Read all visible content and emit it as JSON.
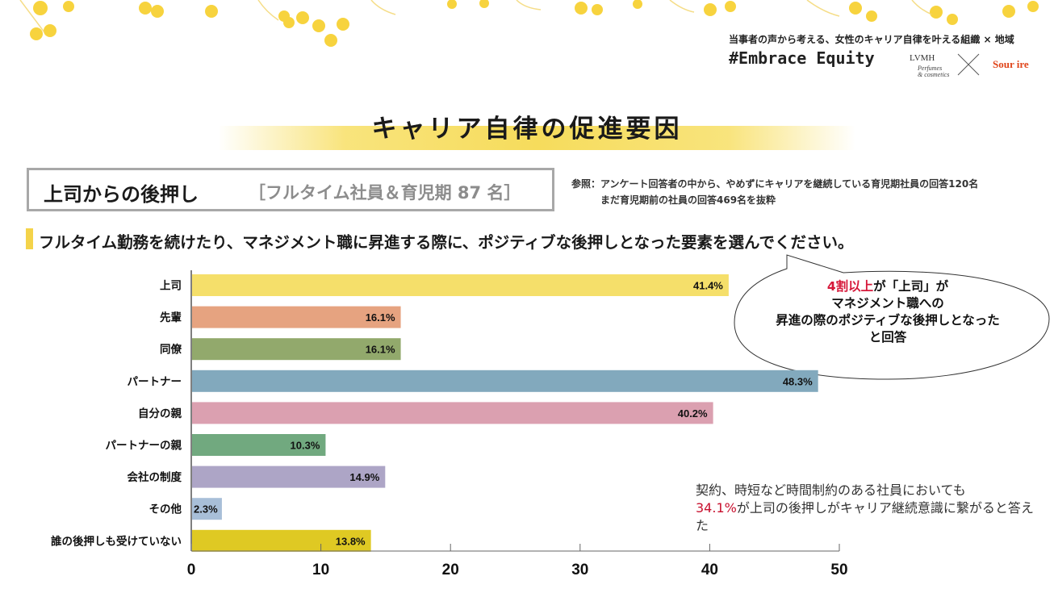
{
  "header": {
    "subtitle": "当事者の声から考える、女性のキャリア自律を叶える組織 × 地域",
    "hashtag": "#Embrace Equity",
    "logo_lvmh": "LVMH",
    "logo_lvmh_sub1": "Perfumes",
    "logo_lvmh_sub2": "& cosmetics",
    "logo_sourire": "Sour ire"
  },
  "page_title": "キャリア自律の促進要因",
  "section": {
    "title": "上司からの後押し",
    "subtitle": "［フルタイム社員＆育児期 87 名］"
  },
  "reference": {
    "line1": "参照：アンケート回答者の中から、やめずにキャリアを継続している育児期社員の回答120名",
    "line2": "まだ育児期前の社員の回答469名を抜粋"
  },
  "question": "フルタイム勤務を続けたり、マネジメント職に昇進する際に、ポジティブな後押しとなった要素を選んでください。",
  "callout": {
    "highlight": "4割以上",
    "line1_rest": "が「上司」が",
    "line2": "マネジメント職への",
    "line3": "昇進の際のポジティブな後押しとなった",
    "line4": "と回答"
  },
  "note": {
    "line1": "契約、時短など時間制約のある社員においても",
    "highlight": "34.1%",
    "line2_rest": "が上司の後押しがキャリア継続意識に繋がると答えた"
  },
  "colors": {
    "accent_red": "#d6183a",
    "title_band": "#f6dc5c"
  },
  "chart_data": {
    "type": "bar",
    "orientation": "horizontal",
    "categories": [
      "上司",
      "先輩",
      "同僚",
      "パートナー",
      "自分の親",
      "パートナーの親",
      "会社の制度",
      "その他",
      "誰の後押しも受けていない"
    ],
    "values": [
      41.4,
      16.1,
      16.1,
      48.3,
      40.2,
      10.3,
      14.9,
      2.3,
      13.8
    ],
    "data_labels": [
      "41.4%",
      "16.1%",
      "16.1%",
      "48.3%",
      "40.2%",
      "10.3%",
      "14.9%",
      "2.3%",
      "13.8%"
    ],
    "bar_colors": [
      "#f5df6a",
      "#e6a380",
      "#92a96c",
      "#82a9bd",
      "#dba0b0",
      "#71a97f",
      "#ada5c6",
      "#a8bfd8",
      "#dfc923"
    ],
    "xlim": [
      0,
      50
    ],
    "xticks": [
      0,
      10,
      20,
      30,
      40,
      50
    ],
    "xtick_labels": [
      "0",
      "10",
      "20",
      "30",
      "40",
      "50"
    ],
    "title": "",
    "xlabel": "",
    "ylabel": "",
    "grid": false,
    "legend": "none"
  }
}
